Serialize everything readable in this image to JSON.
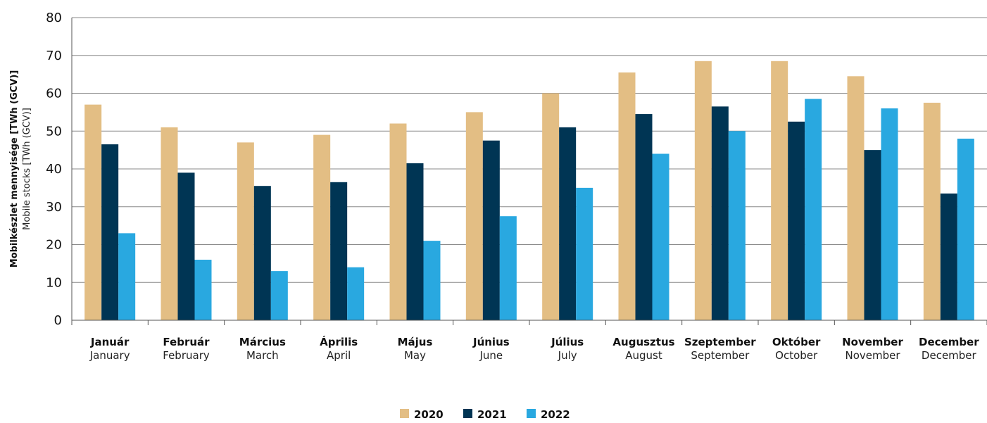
{
  "chart_data": {
    "type": "bar",
    "ylabel_primary": "Mobilkészlet mennyisége [TWh (GCV)]",
    "ylabel_secondary": "Mobile stocks [TWh (GCV)]",
    "ylim": [
      0,
      80
    ],
    "yticks": [
      0,
      10,
      20,
      30,
      40,
      50,
      60,
      70,
      80
    ],
    "grid": true,
    "legend_position": "bottom-center",
    "categories": [
      {
        "hu": "Január",
        "en": "January"
      },
      {
        "hu": "Február",
        "en": "February"
      },
      {
        "hu": "Március",
        "en": "March"
      },
      {
        "hu": "Április",
        "en": "April"
      },
      {
        "hu": "Május",
        "en": "May"
      },
      {
        "hu": "Június",
        "en": "June"
      },
      {
        "hu": "Július",
        "en": "July"
      },
      {
        "hu": "Augusztus",
        "en": "August"
      },
      {
        "hu": "Szeptember",
        "en": "September"
      },
      {
        "hu": "Október",
        "en": "October"
      },
      {
        "hu": "November",
        "en": "November"
      },
      {
        "hu": "December",
        "en": "December"
      }
    ],
    "series": [
      {
        "name": "2020",
        "color": "#E3BE84",
        "values": [
          57.0,
          51.0,
          47.0,
          49.0,
          52.0,
          55.0,
          60.0,
          65.5,
          68.5,
          68.5,
          64.5,
          57.5
        ]
      },
      {
        "name": "2021",
        "color": "#003554",
        "values": [
          46.5,
          39.0,
          35.5,
          36.5,
          41.5,
          47.5,
          51.0,
          54.5,
          56.5,
          52.5,
          45.0,
          33.5
        ]
      },
      {
        "name": "2022",
        "color": "#29A8E0",
        "values": [
          23.0,
          16.0,
          13.0,
          14.0,
          21.0,
          27.5,
          35.0,
          44.0,
          50.0,
          58.5,
          56.0,
          48.0
        ]
      }
    ]
  }
}
